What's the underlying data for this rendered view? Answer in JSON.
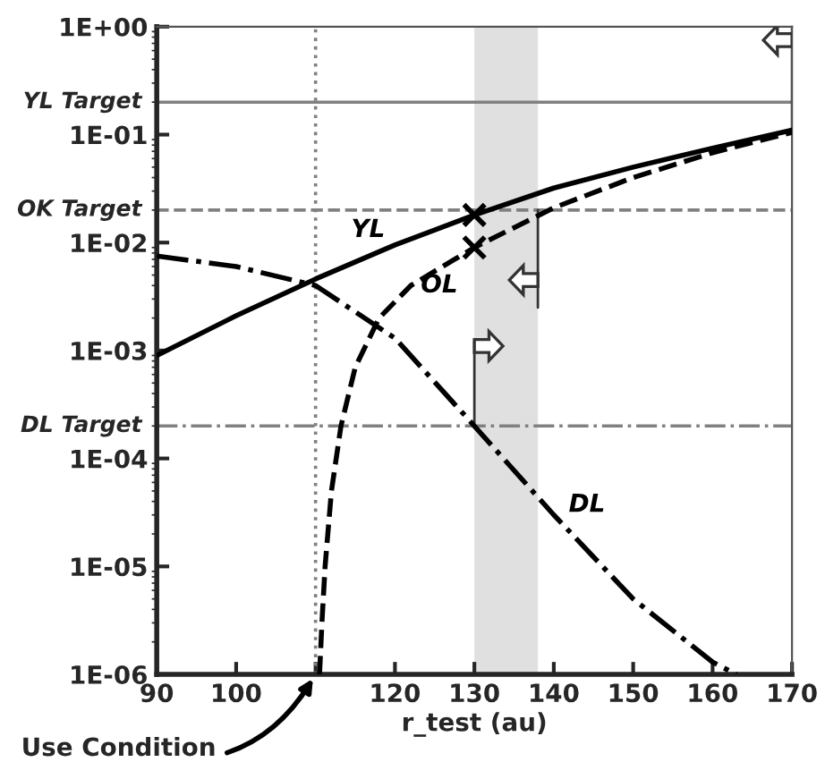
{
  "chart_data": {
    "type": "line",
    "xlabel": "r_test (au)",
    "log": "y",
    "grid": false,
    "legend": false,
    "xlim": [
      90,
      170
    ],
    "xticks": [
      90,
      100,
      {
        "value": 110,
        "label": null
      },
      120,
      130,
      140,
      150,
      160,
      170
    ],
    "ylim": [
      1e-06,
      1
    ],
    "yticks": [
      {
        "value": 1e-06,
        "label": "1E-06"
      },
      {
        "value": 1e-05,
        "label": "1E-05"
      },
      {
        "value": 0.0001,
        "label": "1E-04"
      },
      {
        "value": 0.001,
        "label": "1E-03"
      },
      {
        "value": 0.01,
        "label": "1E-02"
      },
      {
        "value": 0.1,
        "label": "1E-01"
      },
      {
        "value": 1,
        "label": "1E+00"
      }
    ],
    "series": [
      {
        "name": "YL",
        "color": "#000000",
        "line_style": "solid",
        "x": [
          90,
          100,
          110,
          120,
          130,
          140,
          150,
          160,
          170
        ],
        "values": [
          0.0009,
          0.0021,
          0.0046,
          0.0095,
          0.018,
          0.032,
          0.05,
          0.075,
          0.11
        ]
      },
      {
        "name": "OL",
        "color": "#000000",
        "line_style": "dashed",
        "x": [
          110.5,
          110.8,
          111.2,
          112,
          113.2,
          115,
          118,
          122,
          130,
          140,
          150,
          160,
          170
        ],
        "values": [
          1e-06,
          3e-06,
          1e-05,
          5e-05,
          0.0002,
          0.0007,
          0.002,
          0.004,
          0.009,
          0.021,
          0.04,
          0.068,
          0.105
        ]
      },
      {
        "name": "DL",
        "color": "#000000",
        "line_style": "dashdot",
        "x": [
          90,
          100,
          110,
          120,
          130,
          140,
          150,
          160,
          163
        ],
        "values": [
          0.0075,
          0.006,
          0.004,
          0.0013,
          0.0002,
          3e-05,
          5e-06,
          1.3e-06,
          1e-06
        ]
      },
      {
        "type": "scatter",
        "marker": "cross",
        "color": "#000000",
        "x": [
          130,
          130
        ],
        "values": [
          0.018,
          0.009
        ]
      }
    ],
    "ref_lines": [
      {
        "axis": "y",
        "value": 0.2,
        "label": "YL Target",
        "color": "#808080",
        "line_style": "solid"
      },
      {
        "axis": "y",
        "value": 0.02,
        "label": "OK Target",
        "color": "#808080",
        "line_style": "dashed"
      },
      {
        "axis": "y",
        "value": 0.0002,
        "label": "DL Target",
        "color": "#808080",
        "line_style": "dashdot"
      },
      {
        "axis": "x",
        "value": 110,
        "color": "#808080",
        "line_style": "dotted"
      }
    ],
    "bands": [
      {
        "axis": "x",
        "from": 130,
        "to": 138,
        "color": "#e0e0e0"
      }
    ],
    "annotations": [
      {
        "text": "Use Condition",
        "x": 110,
        "y": 1e-06
      }
    ]
  }
}
